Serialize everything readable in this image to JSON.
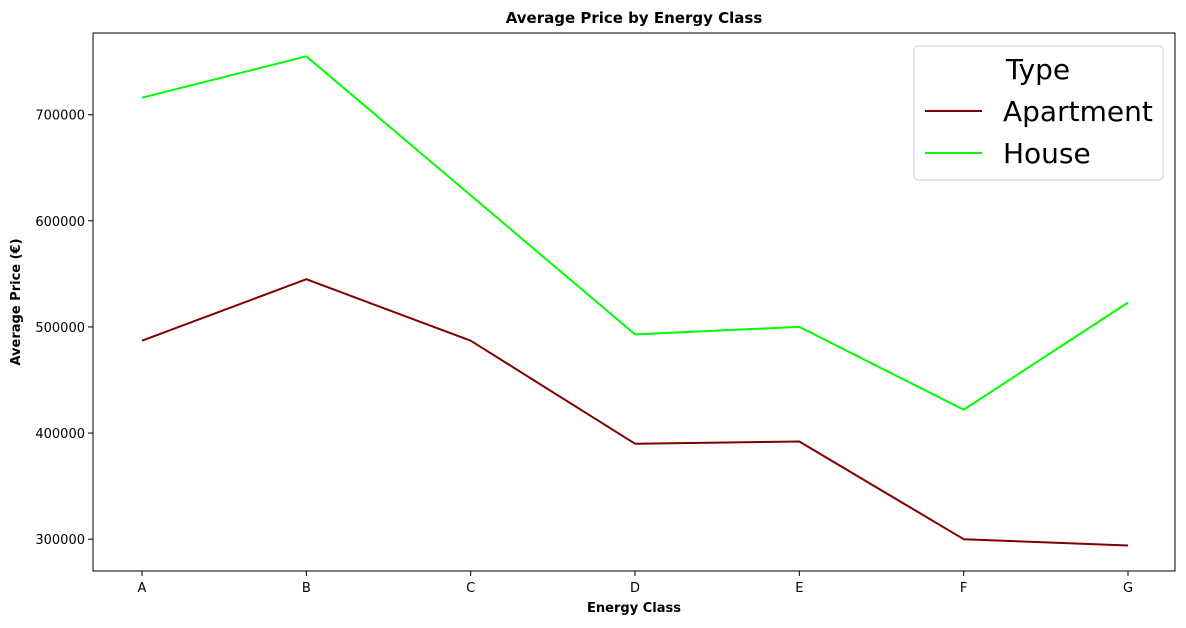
{
  "chart_data": {
    "type": "line",
    "title": "Average Price by Energy Class",
    "xlabel": "Energy Class",
    "ylabel": "Average Price (€)",
    "categories": [
      "A",
      "B",
      "C",
      "D",
      "E",
      "F",
      "G"
    ],
    "ylim": [
      270000,
      777000
    ],
    "yticks": [
      300000,
      400000,
      500000,
      600000,
      700000
    ],
    "ytick_labels": [
      "300000",
      "400000",
      "500000",
      "600000",
      "700000"
    ],
    "grid": false,
    "legend": {
      "title": "Type",
      "placement": "top-right"
    },
    "series": [
      {
        "name": "Apartment",
        "color": "#800000",
        "values": [
          487000,
          545000,
          487000,
          390000,
          392000,
          300000,
          294000
        ]
      },
      {
        "name": "House",
        "color": "#00ff00",
        "values": [
          716000,
          755000,
          624000,
          493000,
          500000,
          422000,
          523000
        ]
      }
    ]
  }
}
